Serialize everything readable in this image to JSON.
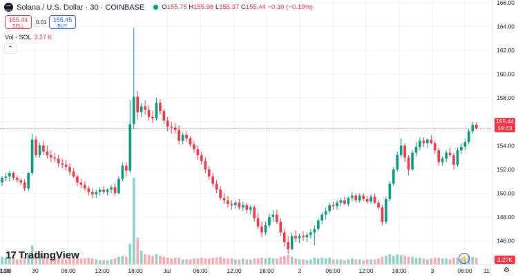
{
  "header": {
    "symbol": "Solana / U.S. Dollar · 30 · COINBASE",
    "open_label": "O",
    "open": "155.75",
    "high_label": "H",
    "high": "155.98",
    "low_label": "L",
    "low": "155.37",
    "close_label": "C",
    "close": "155.44",
    "change": "−0.30 (−0.19%)"
  },
  "trade": {
    "sell_price": "155.44",
    "sell_label": "SELL",
    "spread": "0.01",
    "buy_price": "155.45",
    "buy_label": "BUY"
  },
  "volume_legend": {
    "label": "Vol · SOL",
    "value": "3.27 K"
  },
  "collapse_icon": "chevron-up-icon",
  "brand": "TradingView",
  "price_label": {
    "price": "155.44",
    "countdown": "18:43"
  },
  "volume_label": "3.27K",
  "settings_icon": "gear-icon",
  "colors": {
    "up": "#089981",
    "down": "#f23645",
    "vol_up": "#8fd1c5",
    "vol_down": "#f6a9b0",
    "grid": "#f0f3fa"
  },
  "chart_data": {
    "type": "candlestick",
    "timeframe_minutes": 30,
    "ylim": [
      144,
      166
    ],
    "y_ticks": [
      "146.00",
      "148.00",
      "150.00",
      "152.00",
      "154.00",
      "156.00",
      "158.00",
      "160.00",
      "162.00",
      "164.00",
      "166.00"
    ],
    "x_ticks": [
      "12:00",
      "30",
      "06:00",
      "12:00",
      "18:00",
      "Jul",
      "06:00",
      "12:00",
      "18:00",
      "2",
      "06:00",
      "12:00",
      "18:00",
      "3",
      "06:00"
    ],
    "x_ticks_partial": [
      "1:00",
      "11:"
    ],
    "last_price": 155.44,
    "candles": [
      [
        150.9,
        151.4,
        150.6,
        151.3,
        0.9
      ],
      [
        151.3,
        151.7,
        151.0,
        151.4,
        0.8
      ],
      [
        151.4,
        151.9,
        151.0,
        151.7,
        0.7
      ],
      [
        151.7,
        151.8,
        151.1,
        151.3,
        0.8
      ],
      [
        151.3,
        151.5,
        150.9,
        151.1,
        0.6
      ],
      [
        151.1,
        151.3,
        150.7,
        150.9,
        0.6
      ],
      [
        150.9,
        151.2,
        150.2,
        150.4,
        0.9
      ],
      [
        150.4,
        151.8,
        150.2,
        151.7,
        1.2
      ],
      [
        151.7,
        155.0,
        151.5,
        154.5,
        2.2
      ],
      [
        154.5,
        154.8,
        153.0,
        153.2,
        1.6
      ],
      [
        153.2,
        154.2,
        153.0,
        154.0,
        1.3
      ],
      [
        154.0,
        154.4,
        153.2,
        153.5,
        1.0
      ],
      [
        153.5,
        154.0,
        152.9,
        153.2,
        0.9
      ],
      [
        153.2,
        153.6,
        152.6,
        153.0,
        0.8
      ],
      [
        153.0,
        153.4,
        152.6,
        152.9,
        0.7
      ],
      [
        152.9,
        153.2,
        152.2,
        152.5,
        0.8
      ],
      [
        152.5,
        152.9,
        152.1,
        152.4,
        0.7
      ],
      [
        152.4,
        152.8,
        151.9,
        152.2,
        0.6
      ],
      [
        152.2,
        152.5,
        151.5,
        151.8,
        0.8
      ],
      [
        151.8,
        152.1,
        151.3,
        151.4,
        0.7
      ],
      [
        151.4,
        151.6,
        150.6,
        150.9,
        0.8
      ],
      [
        150.9,
        151.2,
        150.4,
        150.7,
        0.7
      ],
      [
        150.7,
        151.0,
        150.2,
        150.4,
        0.7
      ],
      [
        150.4,
        150.6,
        149.8,
        150.1,
        0.8
      ],
      [
        150.1,
        150.4,
        149.6,
        149.9,
        0.7
      ],
      [
        149.9,
        150.3,
        149.6,
        150.1,
        0.6
      ],
      [
        150.1,
        150.5,
        149.8,
        150.3,
        0.5
      ],
      [
        150.3,
        150.6,
        149.9,
        150.1,
        0.5
      ],
      [
        150.1,
        150.4,
        149.8,
        150.3,
        0.5
      ],
      [
        150.3,
        150.7,
        150.0,
        150.5,
        0.6
      ],
      [
        150.5,
        150.8,
        149.8,
        150.0,
        0.7
      ],
      [
        150.0,
        151.4,
        149.9,
        151.2,
        0.9
      ],
      [
        151.2,
        152.6,
        151.0,
        152.3,
        1.0
      ],
      [
        152.3,
        152.6,
        151.4,
        151.9,
        0.9
      ],
      [
        151.9,
        157.8,
        151.7,
        155.8,
        2.4
      ],
      [
        155.8,
        163.9,
        155.4,
        158.1,
        10.0
      ],
      [
        158.1,
        158.6,
        156.2,
        156.8,
        3.1
      ],
      [
        156.8,
        157.6,
        156.4,
        157.3,
        1.6
      ],
      [
        157.3,
        157.8,
        156.6,
        157.0,
        1.2
      ],
      [
        157.0,
        157.4,
        156.1,
        156.4,
        1.1
      ],
      [
        156.4,
        156.9,
        155.9,
        156.3,
        1.0
      ],
      [
        156.3,
        158.0,
        156.1,
        157.6,
        1.2
      ],
      [
        157.6,
        157.9,
        156.6,
        156.9,
        1.0
      ],
      [
        156.9,
        157.1,
        155.8,
        156.1,
        0.9
      ],
      [
        156.1,
        156.4,
        155.2,
        155.6,
        0.8
      ],
      [
        155.6,
        156.0,
        155.0,
        155.5,
        0.7
      ],
      [
        155.5,
        155.9,
        155.0,
        155.3,
        0.8
      ],
      [
        155.3,
        155.7,
        154.1,
        154.4,
        0.8
      ],
      [
        154.4,
        155.1,
        154.1,
        154.9,
        0.6
      ],
      [
        154.9,
        155.2,
        154.3,
        154.6,
        0.6
      ],
      [
        154.6,
        154.8,
        153.9,
        154.1,
        0.6
      ],
      [
        154.1,
        154.4,
        153.4,
        153.7,
        0.7
      ],
      [
        153.7,
        154.0,
        152.8,
        153.2,
        0.7
      ],
      [
        153.2,
        153.5,
        152.4,
        152.7,
        0.8
      ],
      [
        152.7,
        153.0,
        151.7,
        152.0,
        0.7
      ],
      [
        152.0,
        152.3,
        151.1,
        151.4,
        0.7
      ],
      [
        151.4,
        151.7,
        150.5,
        150.8,
        0.8
      ],
      [
        150.8,
        151.1,
        150.0,
        150.3,
        0.8
      ],
      [
        150.3,
        150.6,
        149.4,
        149.6,
        0.9
      ],
      [
        149.6,
        150.0,
        149.1,
        149.4,
        0.7
      ],
      [
        149.4,
        149.8,
        148.8,
        149.1,
        0.7
      ],
      [
        149.1,
        149.4,
        148.6,
        149.0,
        0.7
      ],
      [
        149.0,
        149.4,
        148.7,
        149.2,
        0.6
      ],
      [
        149.2,
        149.5,
        148.6,
        148.8,
        0.6
      ],
      [
        148.8,
        149.3,
        148.5,
        149.0,
        0.7
      ],
      [
        149.0,
        149.2,
        148.3,
        148.6,
        0.6
      ],
      [
        148.6,
        149.0,
        148.2,
        148.8,
        0.6
      ],
      [
        148.8,
        149.0,
        147.6,
        147.9,
        0.7
      ],
      [
        147.9,
        148.3,
        147.0,
        147.2,
        0.7
      ],
      [
        147.2,
        147.6,
        146.3,
        146.7,
        0.8
      ],
      [
        146.7,
        147.6,
        146.5,
        147.3,
        0.7
      ],
      [
        147.3,
        148.3,
        147.1,
        148.0,
        0.8
      ],
      [
        148.0,
        148.6,
        147.6,
        148.2,
        0.7
      ],
      [
        148.2,
        148.6,
        147.4,
        147.6,
        0.7
      ],
      [
        147.6,
        147.9,
        146.4,
        146.7,
        0.9
      ],
      [
        146.7,
        147.0,
        145.5,
        145.9,
        1.0
      ],
      [
        145.9,
        146.4,
        144.9,
        145.3,
        1.1
      ],
      [
        145.3,
        146.7,
        145.2,
        146.4,
        0.9
      ],
      [
        146.4,
        146.9,
        145.9,
        146.2,
        0.7
      ],
      [
        146.2,
        146.6,
        145.8,
        146.4,
        0.6
      ],
      [
        146.4,
        146.8,
        146.0,
        146.3,
        0.6
      ],
      [
        146.3,
        146.7,
        145.9,
        146.5,
        0.5
      ],
      [
        146.5,
        147.0,
        146.2,
        146.7,
        0.6
      ],
      [
        146.7,
        147.3,
        145.6,
        147.0,
        0.8
      ],
      [
        147.0,
        147.9,
        146.8,
        147.7,
        0.7
      ],
      [
        147.7,
        148.4,
        147.4,
        148.2,
        0.8
      ],
      [
        148.2,
        148.8,
        147.8,
        148.5,
        0.7
      ],
      [
        148.5,
        149.2,
        148.3,
        149.0,
        0.8
      ],
      [
        149.0,
        149.3,
        148.6,
        148.9,
        0.6
      ],
      [
        148.9,
        149.4,
        148.6,
        149.2,
        0.6
      ],
      [
        149.2,
        149.6,
        148.9,
        149.4,
        0.6
      ],
      [
        149.4,
        149.7,
        149.0,
        149.1,
        0.5
      ],
      [
        149.1,
        149.7,
        148.9,
        149.6,
        0.6
      ],
      [
        149.6,
        150.1,
        149.3,
        149.8,
        0.7
      ],
      [
        149.8,
        150.0,
        149.2,
        149.4,
        0.6
      ],
      [
        149.4,
        150.0,
        149.2,
        149.8,
        0.6
      ],
      [
        149.8,
        150.0,
        149.3,
        149.5,
        0.5
      ],
      [
        149.5,
        149.8,
        149.1,
        149.3,
        0.6
      ],
      [
        149.3,
        149.9,
        149.1,
        149.7,
        0.6
      ],
      [
        149.7,
        150.0,
        149.1,
        149.2,
        0.6
      ],
      [
        149.2,
        149.4,
        148.6,
        148.8,
        0.7
      ],
      [
        148.8,
        149.0,
        147.3,
        147.6,
        0.9
      ],
      [
        147.6,
        149.7,
        147.4,
        149.5,
        1.0
      ],
      [
        149.5,
        151.0,
        149.3,
        150.8,
        1.2
      ],
      [
        150.8,
        152.2,
        150.6,
        152.0,
        1.0
      ],
      [
        152.0,
        153.5,
        151.8,
        153.2,
        1.2
      ],
      [
        153.2,
        154.6,
        153.0,
        154.0,
        1.1
      ],
      [
        154.0,
        154.2,
        152.6,
        153.0,
        1.0
      ],
      [
        153.0,
        153.2,
        151.5,
        152.0,
        0.9
      ],
      [
        152.0,
        153.6,
        151.9,
        153.4,
        0.9
      ],
      [
        153.4,
        154.3,
        153.1,
        153.9,
        0.8
      ],
      [
        153.9,
        154.7,
        153.6,
        154.4,
        0.8
      ],
      [
        154.4,
        154.7,
        153.9,
        154.2,
        0.7
      ],
      [
        154.2,
        154.6,
        153.8,
        154.5,
        0.6
      ],
      [
        154.5,
        154.9,
        154.1,
        154.2,
        0.7
      ],
      [
        154.2,
        154.4,
        153.3,
        153.6,
        0.8
      ],
      [
        153.6,
        153.8,
        152.3,
        152.6,
        0.8
      ],
      [
        152.6,
        153.1,
        152.3,
        152.9,
        0.7
      ],
      [
        152.9,
        153.6,
        152.6,
        153.4,
        0.7
      ],
      [
        153.4,
        153.8,
        153.0,
        153.2,
        0.6
      ],
      [
        153.2,
        153.4,
        152.0,
        152.4,
        0.8
      ],
      [
        152.4,
        153.8,
        152.2,
        153.6,
        0.8
      ],
      [
        153.6,
        154.2,
        153.3,
        153.9,
        0.7
      ],
      [
        153.9,
        154.6,
        153.6,
        154.3,
        0.8
      ],
      [
        154.3,
        155.4,
        154.1,
        155.2,
        1.0
      ],
      [
        155.2,
        156.0,
        155.0,
        155.75,
        0.9
      ],
      [
        155.75,
        155.98,
        155.37,
        155.44,
        0.8
      ]
    ]
  }
}
